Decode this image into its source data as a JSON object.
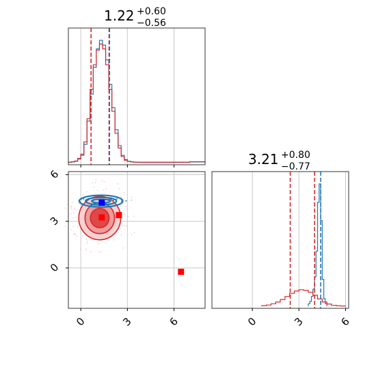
{
  "chart_data": {
    "type": "corner",
    "colors": {
      "blue": "#1f77b4",
      "red": "#d62728",
      "marker_blue": "#0000ff",
      "marker_red": "#ff0000",
      "grid": "#c8c8c8"
    },
    "panels": [
      {
        "id": "marginal-1",
        "type": "histogram",
        "title": {
          "median": "1.22",
          "plus": "+0.60",
          "minus": "−0.56"
        },
        "xlim": [
          -0.8,
          8.0
        ],
        "grid_x": [
          0,
          3,
          6
        ],
        "series": [
          {
            "name": "",
            "color": "#1f77b4",
            "bin_edges": [
              -0.8,
              -0.6,
              -0.4,
              -0.2,
              0.0,
              0.2,
              0.4,
              0.6,
              0.8,
              1.0,
              1.2,
              1.4,
              1.6,
              1.8,
              2.0,
              2.2,
              2.4,
              2.6,
              2.8,
              3.0,
              3.2,
              3.4,
              3.6,
              3.8,
              4.0,
              5.0,
              6.0,
              7.0,
              8.0
            ],
            "heights": [
              0.003,
              0.006,
              0.012,
              0.03,
              0.06,
              0.15,
              0.34,
              0.56,
              0.78,
              0.93,
              1.0,
              0.96,
              0.84,
              0.64,
              0.45,
              0.27,
              0.14,
              0.06,
              0.025,
              0.012,
              0.008,
              0.005,
              0.003,
              0.002,
              0.002,
              0.002,
              0.003,
              0.006
            ]
          },
          {
            "name": "",
            "color": "#d62728",
            "bin_edges": [
              -0.8,
              -0.6,
              -0.4,
              -0.2,
              0.0,
              0.2,
              0.4,
              0.6,
              0.8,
              1.0,
              1.2,
              1.4,
              1.6,
              1.8,
              2.0,
              2.2,
              2.4,
              2.6,
              2.8,
              3.0,
              3.2,
              3.4,
              3.6,
              3.8,
              4.0,
              5.0,
              6.0,
              7.0,
              8.0
            ],
            "heights": [
              0.004,
              0.008,
              0.014,
              0.035,
              0.07,
              0.17,
              0.36,
              0.6,
              0.8,
              0.92,
              0.97,
              0.93,
              0.8,
              0.6,
              0.42,
              0.24,
              0.12,
              0.05,
              0.02,
              0.01,
              0.006,
              0.004,
              0.004,
              0.004,
              0.004,
              0.004,
              0.004,
              0.008
            ]
          }
        ],
        "vlines": [
          {
            "x": 0.66,
            "color": "#d62728"
          },
          {
            "x": 1.82,
            "color": "#d62728"
          },
          {
            "x": 1.85,
            "color": "#1f77b4"
          }
        ]
      },
      {
        "id": "joint",
        "type": "contour",
        "xlim": [
          -0.8,
          8.0
        ],
        "ylim": [
          -2.6,
          6.2
        ],
        "xticks": [
          0,
          3,
          6
        ],
        "yticks": [
          0,
          3,
          6
        ],
        "red_contours": [
          {
            "cx": 1.22,
            "cy": 3.21,
            "rx": 1.35,
            "ry": 1.4
          },
          {
            "cx": 1.22,
            "cy": 3.21,
            "rx": 0.95,
            "ry": 1.0
          },
          {
            "cx": 1.22,
            "cy": 3.21,
            "rx": 0.6,
            "ry": 0.62
          }
        ],
        "blue_contours": [
          {
            "cx": 1.3,
            "cy": 4.3,
            "rx": 1.4,
            "ry": 0.38
          },
          {
            "cx": 1.3,
            "cy": 4.3,
            "rx": 1.0,
            "ry": 0.24
          },
          {
            "cx": 1.3,
            "cy": 4.3,
            "rx": 0.6,
            "ry": 0.12
          }
        ],
        "markers": [
          {
            "x": 1.35,
            "y": 4.2,
            "color": "#0000ff"
          },
          {
            "x": 1.35,
            "y": 3.25,
            "color": "#ff0000"
          },
          {
            "x": 2.45,
            "y": 3.4,
            "color": "#ff0000"
          },
          {
            "x": 6.45,
            "y": -0.25,
            "color": "#ff0000"
          }
        ]
      },
      {
        "id": "marginal-2",
        "type": "histogram",
        "title": {
          "median": "3.21",
          "plus": "+0.80",
          "minus": "−0.77"
        },
        "xlim": [
          -2.6,
          6.2
        ],
        "xticks": [
          0,
          3,
          6
        ],
        "grid_x": [
          0,
          3,
          6
        ],
        "series": [
          {
            "name": "",
            "color": "#1f77b4",
            "bin_edges": [
              3.6,
              3.7,
              3.8,
              3.9,
              4.0,
              4.1,
              4.2,
              4.3,
              4.4,
              4.5,
              4.6,
              4.7,
              4.8
            ],
            "heights": [
              0.02,
              0.04,
              0.08,
              0.14,
              0.24,
              0.45,
              0.85,
              1.0,
              0.7,
              0.22,
              0.06,
              0.02
            ]
          },
          {
            "name": "",
            "color": "#d62728",
            "bin_edges": [
              0.6,
              0.9,
              1.2,
              1.5,
              1.8,
              2.1,
              2.4,
              2.7,
              3.0,
              3.3,
              3.6,
              3.9,
              4.2,
              4.5,
              4.8,
              5.1,
              5.4,
              5.7,
              6.0
            ],
            "heights": [
              0.005,
              0.01,
              0.02,
              0.035,
              0.055,
              0.08,
              0.105,
              0.125,
              0.135,
              0.13,
              0.115,
              0.09,
              0.06,
              0.035,
              0.018,
              0.008,
              0.004,
              0.002
            ]
          }
        ],
        "vlines": [
          {
            "x": 2.44,
            "color": "#d62728"
          },
          {
            "x": 4.01,
            "color": "#d62728"
          },
          {
            "x": 4.4,
            "color": "#1f77b4"
          }
        ]
      }
    ]
  }
}
